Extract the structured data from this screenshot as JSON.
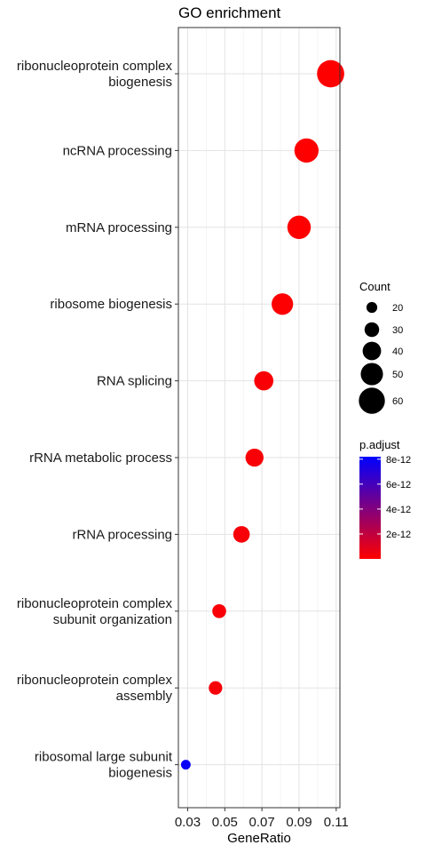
{
  "chart_data": {
    "type": "scatter",
    "title": "GO enrichment",
    "xlabel": "GeneRatio",
    "ylabel": "",
    "xlim": [
      0.025,
      0.112
    ],
    "xticks": [
      "0.03",
      "0.05",
      "0.07",
      "0.09",
      "0.11"
    ],
    "grid": true,
    "categories": [
      "ribonucleoprotein complex biogenesis",
      "ncRNA processing",
      "mRNA processing",
      "ribosome biogenesis",
      "RNA splicing",
      "rRNA metabolic process",
      "rRNA processing",
      "ribonucleoprotein complex subunit organization",
      "ribonucleoprotein complex assembly",
      "ribosomal large subunit biogenesis"
    ],
    "category_lines": [
      [
        "ribonucleoprotein complex",
        "biogenesis"
      ],
      [
        "ncRNA processing"
      ],
      [
        "mRNA processing"
      ],
      [
        "ribosome biogenesis"
      ],
      [
        "RNA splicing"
      ],
      [
        "rRNA metabolic process"
      ],
      [
        "rRNA processing"
      ],
      [
        "ribonucleoprotein complex",
        "subunit organization"
      ],
      [
        "ribonucleoprotein complex",
        "assembly"
      ],
      [
        "ribosomal large subunit",
        "biogenesis"
      ]
    ],
    "points": [
      {
        "gene_ratio": 0.107,
        "count": 63,
        "p_adjust": 1e-14
      },
      {
        "gene_ratio": 0.094,
        "count": 55,
        "p_adjust": 1e-14
      },
      {
        "gene_ratio": 0.09,
        "count": 53,
        "p_adjust": 1e-14
      },
      {
        "gene_ratio": 0.081,
        "count": 48,
        "p_adjust": 5e-14
      },
      {
        "gene_ratio": 0.071,
        "count": 42,
        "p_adjust": 2e-13
      },
      {
        "gene_ratio": 0.066,
        "count": 39,
        "p_adjust": 2e-13
      },
      {
        "gene_ratio": 0.059,
        "count": 35,
        "p_adjust": 2.5e-13
      },
      {
        "gene_ratio": 0.047,
        "count": 28,
        "p_adjust": 2e-13
      },
      {
        "gene_ratio": 0.045,
        "count": 27,
        "p_adjust": 2.5e-13
      },
      {
        "gene_ratio": 0.029,
        "count": 17,
        "p_adjust": 8e-12
      }
    ],
    "legend_size": {
      "title": "Count",
      "labels": [
        "20",
        "30",
        "40",
        "50",
        "60"
      ],
      "values": [
        20,
        30,
        40,
        50,
        60
      ]
    },
    "legend_color": {
      "title": "p.adjust",
      "labels": [
        "8e-12",
        "6e-12",
        "4e-12",
        "2e-12"
      ],
      "values": [
        8e-12,
        6e-12,
        4e-12,
        2e-12
      ],
      "range": [
        0,
        8.2e-12
      ],
      "low_color": "#ff0000",
      "high_color": "#0000ff"
    },
    "legend_position": "right"
  }
}
